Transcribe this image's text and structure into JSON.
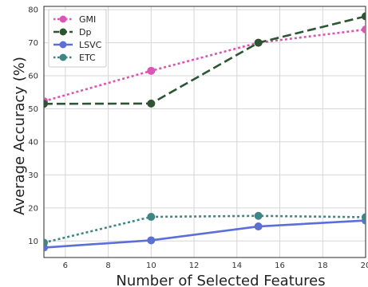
{
  "chart_data": {
    "type": "line",
    "xlabel": "Number of Selected Features",
    "ylabel": "Average Accuracy (%)",
    "xlim": [
      5,
      20
    ],
    "ylim": [
      5,
      81
    ],
    "x_ticks": [
      6,
      8,
      10,
      12,
      14,
      16,
      18,
      20
    ],
    "y_ticks": [
      10,
      20,
      30,
      40,
      50,
      60,
      70,
      80
    ],
    "grid": true,
    "legend_position": "top-left",
    "series": [
      {
        "name": "GMI",
        "color": "#dd55b4",
        "dash": "dotted",
        "x": [
          5,
          10,
          15,
          20
        ],
        "y": [
          52.3,
          61.5,
          70.0,
          74.0
        ]
      },
      {
        "name": "Dp",
        "color": "#2d5533",
        "dash": "dashed",
        "x": [
          5,
          10,
          15,
          20
        ],
        "y": [
          51.5,
          51.6,
          70.0,
          78.0
        ]
      },
      {
        "name": "LSVC",
        "color": "#5b6fd6",
        "dash": "solid",
        "x": [
          5,
          10,
          15,
          20
        ],
        "y": [
          8.0,
          10.2,
          14.4,
          16.2
        ]
      },
      {
        "name": "ETC",
        "color": "#3e8585",
        "dash": "dotted",
        "x": [
          5,
          10,
          15,
          20
        ],
        "y": [
          9.5,
          17.3,
          17.6,
          17.2
        ]
      }
    ]
  }
}
